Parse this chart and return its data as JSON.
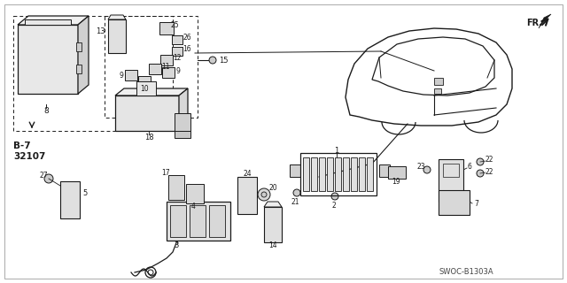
{
  "bg_color": "#ffffff",
  "line_color": "#1a1a1a",
  "fig_width": 6.4,
  "fig_height": 3.2,
  "dpi": 100,
  "swoc_label": "SWOC-B1303A",
  "fr_label": "FR.",
  "b7_label": "B-7\n32107",
  "border_color": "#aaaaaa",
  "car_color": "#333333",
  "part_color": "#444444",
  "dashed_color": "#555555"
}
